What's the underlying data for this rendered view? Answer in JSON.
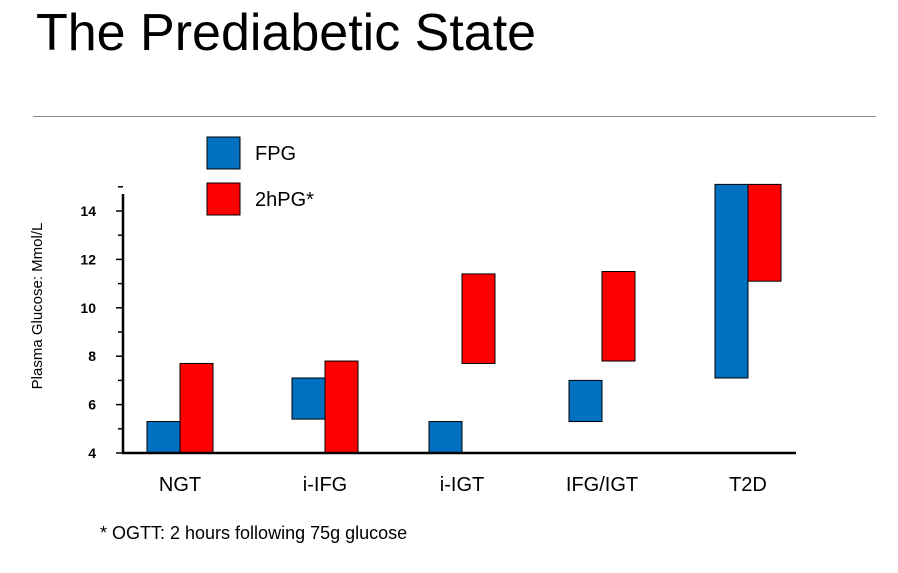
{
  "slide": {
    "title": "The Prediabetic State",
    "footnote": "* OGTT: 2 hours following 75g glucose"
  },
  "chart_data": {
    "type": "bar",
    "subtype": "floating-range",
    "title": "",
    "xlabel": "",
    "ylabel": "Plasma Glucose: Mmol/L",
    "ylim": [
      4,
      15.2
    ],
    "yticks": [
      4,
      6,
      8,
      10,
      12,
      14
    ],
    "grid": false,
    "legend": "top-left",
    "categories": [
      "NGT",
      "i-IFG",
      "i-IGT",
      "IFG/IGT",
      "T2D"
    ],
    "series": [
      {
        "name": "FPG",
        "color": "#0070C0",
        "ranges": [
          [
            4,
            5.3
          ],
          [
            5.4,
            7.1
          ],
          [
            4,
            5.3
          ],
          [
            5.3,
            7.0
          ],
          [
            7.1,
            15.1
          ]
        ]
      },
      {
        "name": "2hPG*",
        "color": "#FF0000",
        "ranges": [
          [
            4,
            7.7
          ],
          [
            4,
            7.8
          ],
          [
            7.7,
            11.4
          ],
          [
            7.8,
            11.5
          ],
          [
            11.1,
            15.1
          ]
        ]
      }
    ]
  }
}
